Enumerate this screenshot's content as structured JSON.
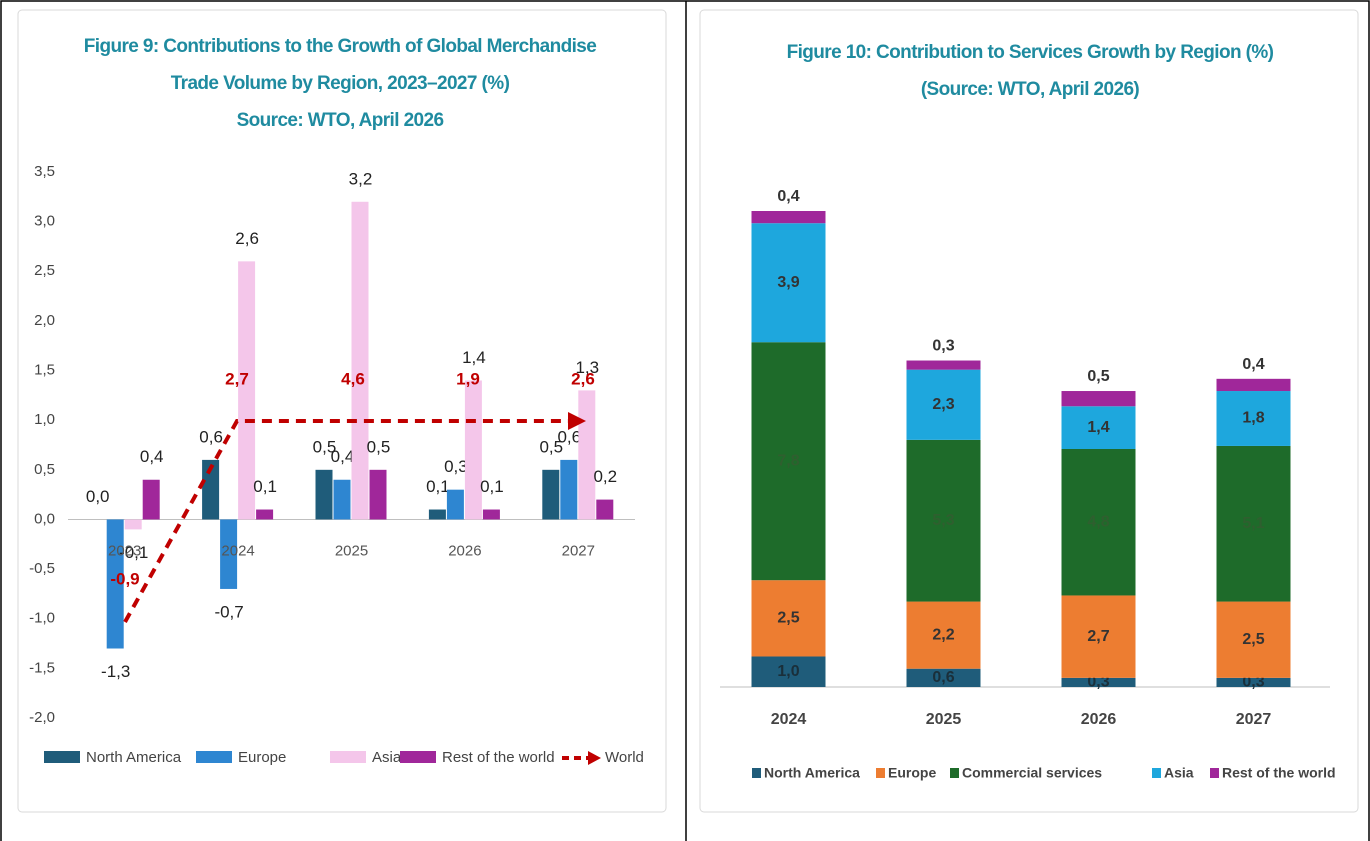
{
  "chart_data": [
    {
      "type": "bar",
      "title": "Figure 9: Contributions to the Growth of Global Merchandise Trade Volume by Region, 2023–2027 (%)",
      "subtitle": "Source: WTO, April 2026",
      "categories": [
        "2023",
        "2024",
        "2025",
        "2026",
        "2027"
      ],
      "ylim": [
        -2,
        3.5
      ],
      "yticks": [
        {
          "value": -2,
          "label": "-2,0"
        },
        {
          "value": -1.5,
          "label": "-1,5"
        },
        {
          "value": -1,
          "label": "-1,0"
        },
        {
          "value": -0.5,
          "label": "-0,5"
        },
        {
          "value": 0,
          "label": "0,0"
        },
        {
          "value": 0.5,
          "label": "0,5"
        },
        {
          "value": 1,
          "label": "1,0"
        },
        {
          "value": 1.5,
          "label": "1,5"
        },
        {
          "value": 2,
          "label": "2,0"
        },
        {
          "value": 2.5,
          "label": "2,5"
        },
        {
          "value": 3,
          "label": "3,0"
        },
        {
          "value": 3.5,
          "label": "3,5"
        }
      ],
      "grid": false,
      "series": [
        {
          "name": "North America",
          "color": "#1f5c7a",
          "values": [
            0.0,
            0.6,
            0.5,
            0.1,
            0.5
          ],
          "value_labels": [
            "0,0",
            "0,6",
            "0,5",
            "0,1",
            "0,5"
          ]
        },
        {
          "name": "Europe",
          "color": "#2e86d1",
          "values": [
            -1.3,
            -0.7,
            0.4,
            0.3,
            0.6
          ],
          "value_labels": [
            "-1,3",
            "-0,7",
            "0,4",
            "0,3",
            "0,6"
          ]
        },
        {
          "name": "Asia",
          "color": "#f4c6ea",
          "values": [
            -0.1,
            2.6,
            3.2,
            1.4,
            1.3
          ],
          "value_labels": [
            "-0,1",
            "2,6",
            "3,2",
            "1,4",
            "1,3"
          ]
        },
        {
          "name": "Rest of the world",
          "color": "#a0279a",
          "values": [
            0.4,
            0.1,
            0.5,
            0.1,
            0.2
          ],
          "value_labels": [
            "0,4",
            "0,1",
            "0,5",
            "0,1",
            "0,2"
          ]
        }
      ],
      "world": {
        "name": "World",
        "color": "#c00000",
        "values": [
          -0.9,
          2.7,
          4.6,
          1.9,
          2.6
        ],
        "value_labels": [
          "-0,9",
          "2,7",
          "4,6",
          "1,9",
          "2,6"
        ]
      }
    },
    {
      "type": "stacked_bar",
      "title": "Figure 10: Contribution to Services Growth by Region (%)",
      "subtitle": "(Source: WTO, April 2026)",
      "categories": [
        "2024",
        "2025",
        "2026",
        "2027"
      ],
      "series": [
        {
          "name": "North America",
          "color": "#1f5c7a",
          "values": [
            1.0,
            0.6,
            0.3,
            0.3
          ],
          "value_labels": [
            "1,0",
            "0,6",
            "0,3",
            "0,3"
          ]
        },
        {
          "name": "Europe",
          "color": "#ed7d31",
          "values": [
            2.5,
            2.2,
            2.7,
            2.5
          ],
          "value_labels": [
            "2,5",
            "2,2",
            "2,7",
            "2,5"
          ]
        },
        {
          "name": "Commercial services",
          "color": "#1e6b2a",
          "values": [
            7.8,
            5.3,
            4.8,
            5.1
          ],
          "value_labels": [
            "7,8",
            "5,3",
            "4,8",
            "5,1"
          ]
        },
        {
          "name": "Asia",
          "color": "#1ea7dd",
          "values": [
            3.9,
            2.3,
            1.4,
            1.8
          ],
          "value_labels": [
            "3,9",
            "2,3",
            "1,4",
            "1,8"
          ]
        },
        {
          "name": "Rest of the world",
          "color": "#a0279a",
          "values": [
            0.4,
            0.3,
            0.5,
            0.4
          ],
          "value_labels": [
            "0,4",
            "0,3",
            "0,5",
            "0,4"
          ]
        }
      ]
    }
  ]
}
